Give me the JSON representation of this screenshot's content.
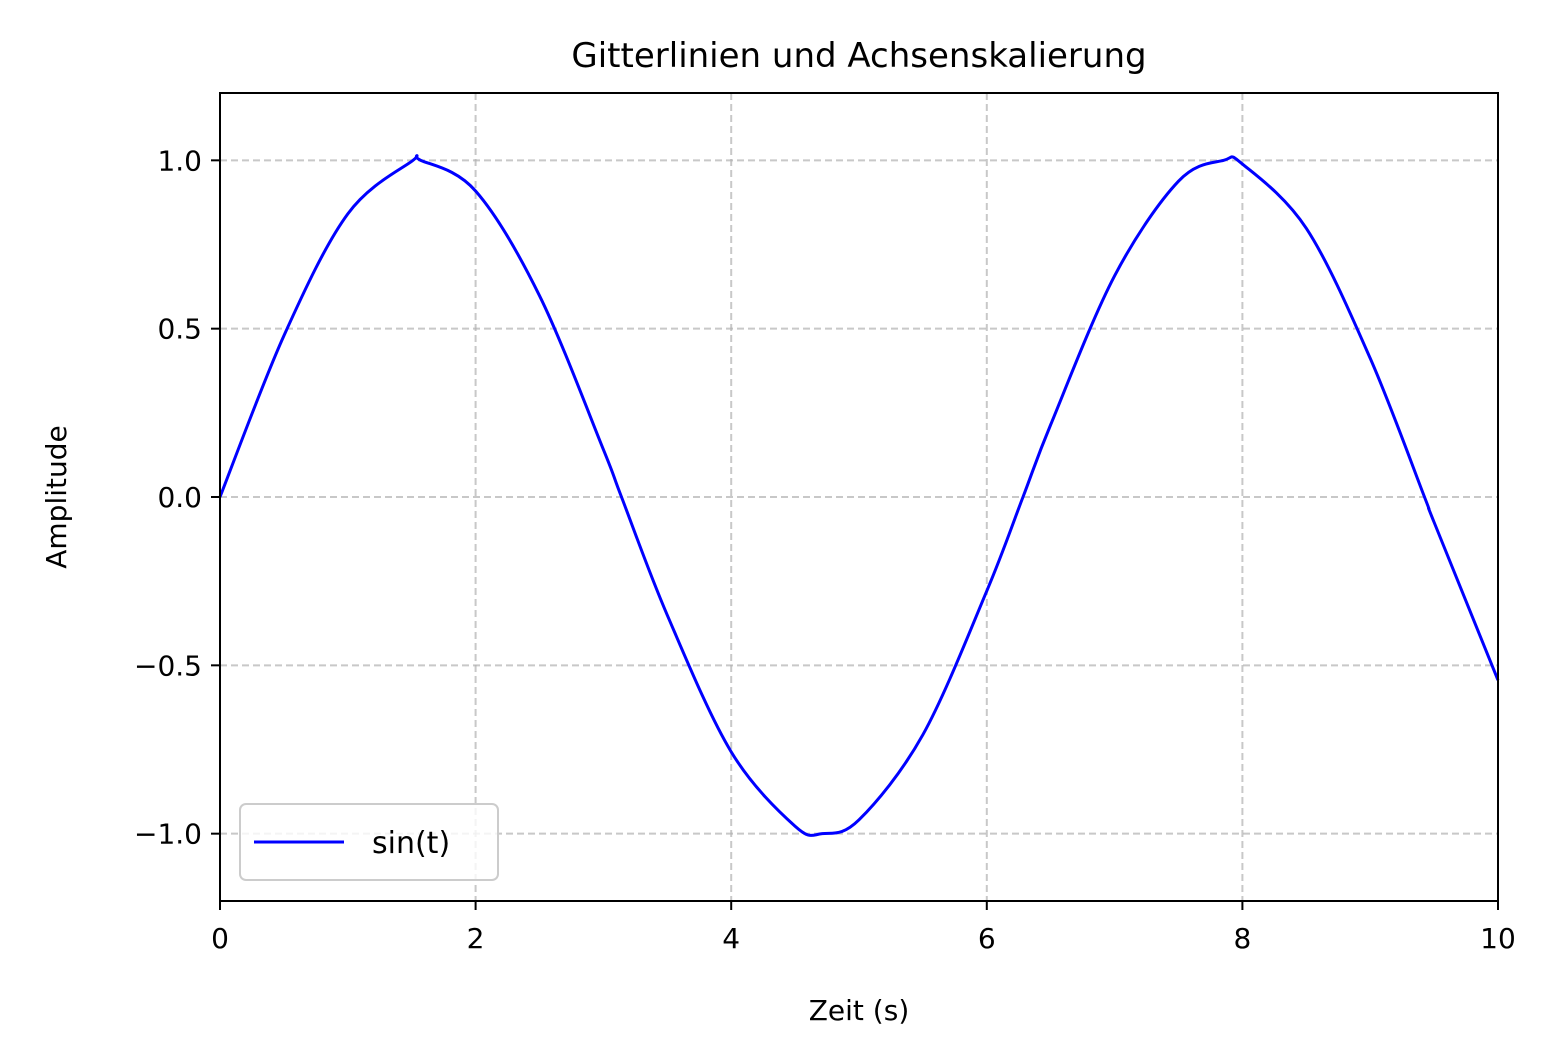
{
  "chart_data": {
    "type": "line",
    "title": "Gitterlinien und Achsenskalierung",
    "xlabel": "Zeit (s)",
    "ylabel": "Amplitude",
    "xlim": [
      0,
      10
    ],
    "ylim": [
      -1.2,
      1.2
    ],
    "xticks": [
      0,
      2,
      4,
      6,
      8,
      10
    ],
    "xtick_labels": [
      "0",
      "2",
      "4",
      "6",
      "8",
      "10"
    ],
    "yticks": [
      -1.0,
      -0.5,
      0.0,
      0.5,
      1.0
    ],
    "ytick_labels": [
      "−1.0",
      "−0.5",
      "0.0",
      "0.5",
      "1.0"
    ],
    "grid": true,
    "grid_style": "dashed",
    "legend_position": "lower-left",
    "series": [
      {
        "name": "sin(t)",
        "color": "#0000ff",
        "x": [
          0,
          0.5,
          1,
          1.5,
          1.5708,
          2,
          2.5,
          3,
          3.1416,
          3.5,
          4,
          4.5,
          4.7124,
          5,
          5.5,
          6,
          6.2832,
          6.5,
          7,
          7.5,
          7.854,
          8,
          8.5,
          9,
          9.4248,
          9.5,
          10
        ],
        "y": [
          0,
          0.479,
          0.841,
          0.997,
          1.0,
          0.909,
          0.598,
          0.141,
          0,
          -0.351,
          -0.757,
          -0.978,
          -1.0,
          -0.959,
          -0.706,
          -0.279,
          0,
          0.215,
          0.657,
          0.938,
          1.0,
          0.989,
          0.798,
          0.412,
          0,
          -0.075,
          -0.544
        ]
      }
    ]
  }
}
